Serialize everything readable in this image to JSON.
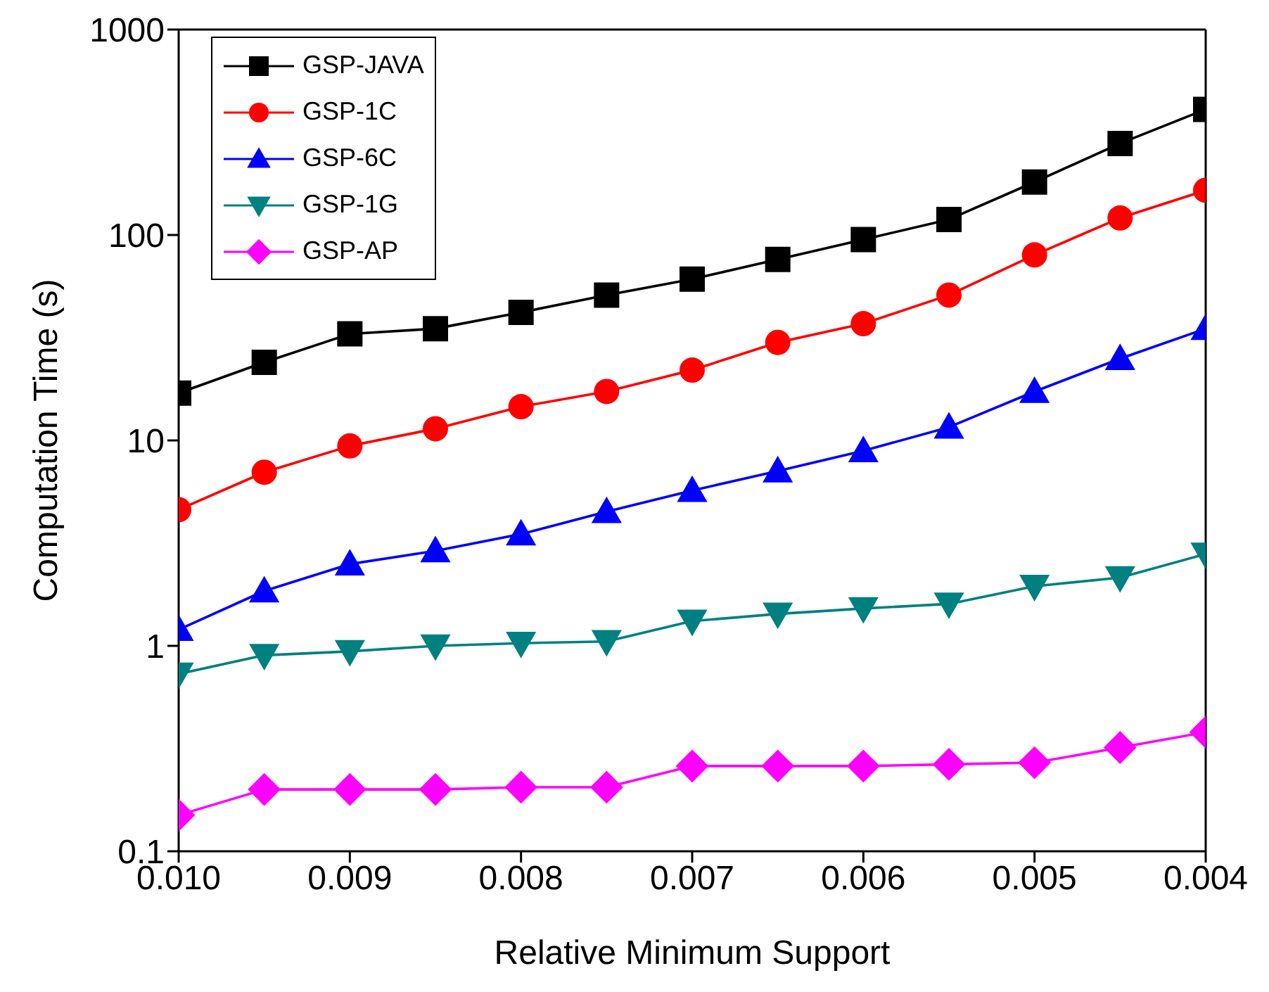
{
  "chart_data": {
    "type": "line",
    "xlabel": "Relative Minimum Support",
    "ylabel": "Computation Time (s)",
    "x": [
      0.01,
      0.0095,
      0.009,
      0.0085,
      0.008,
      0.0075,
      0.007,
      0.0065,
      0.006,
      0.0055,
      0.005,
      0.0045,
      0.004
    ],
    "xlim": [
      0.01,
      0.004
    ],
    "xticks": [
      {
        "value": 0.01,
        "label": "0.010"
      },
      {
        "value": 0.009,
        "label": "0.009"
      },
      {
        "value": 0.008,
        "label": "0.008"
      },
      {
        "value": 0.007,
        "label": "0.007"
      },
      {
        "value": 0.006,
        "label": "0.006"
      },
      {
        "value": 0.005,
        "label": "0.005"
      },
      {
        "value": 0.004,
        "label": "0.004"
      }
    ],
    "ylim": [
      0.1,
      1000
    ],
    "yticks": [
      0.1,
      1,
      10,
      100,
      1000
    ],
    "log": "y",
    "grid": false,
    "legend": "top left",
    "line_style": "solid",
    "series": [
      {
        "name": "GSP-JAVA",
        "color": "#000000",
        "marker": "square",
        "values": [
          17,
          24,
          33,
          35,
          42,
          51,
          61,
          76,
          95,
          119,
          181,
          279,
          409
        ]
      },
      {
        "name": "GSP-1C",
        "color": "#ff0000",
        "marker": "circle",
        "values": [
          4.6,
          7,
          9.4,
          11.4,
          14.6,
          17.3,
          22,
          30,
          37,
          51,
          80,
          121,
          165
        ]
      },
      {
        "name": "GSP-6C",
        "color": "#0000ff",
        "marker": "triangle",
        "values": [
          1.2,
          1.85,
          2.5,
          2.9,
          3.5,
          4.5,
          5.7,
          7.1,
          8.9,
          11.6,
          17.3,
          25,
          35
        ]
      },
      {
        "name": "GSP-1G",
        "color": "#008080",
        "marker": "triangle-down",
        "values": [
          0.73,
          0.9,
          0.94,
          1,
          1.03,
          1.05,
          1.32,
          1.43,
          1.52,
          1.6,
          1.95,
          2.15,
          2.8
        ]
      },
      {
        "name": "GSP-AP",
        "color": "#ff00ff",
        "marker": "diamond",
        "values": [
          0.15,
          0.2,
          0.2,
          0.2,
          0.205,
          0.205,
          0.26,
          0.26,
          0.26,
          0.265,
          0.27,
          0.32,
          0.38
        ]
      }
    ]
  }
}
